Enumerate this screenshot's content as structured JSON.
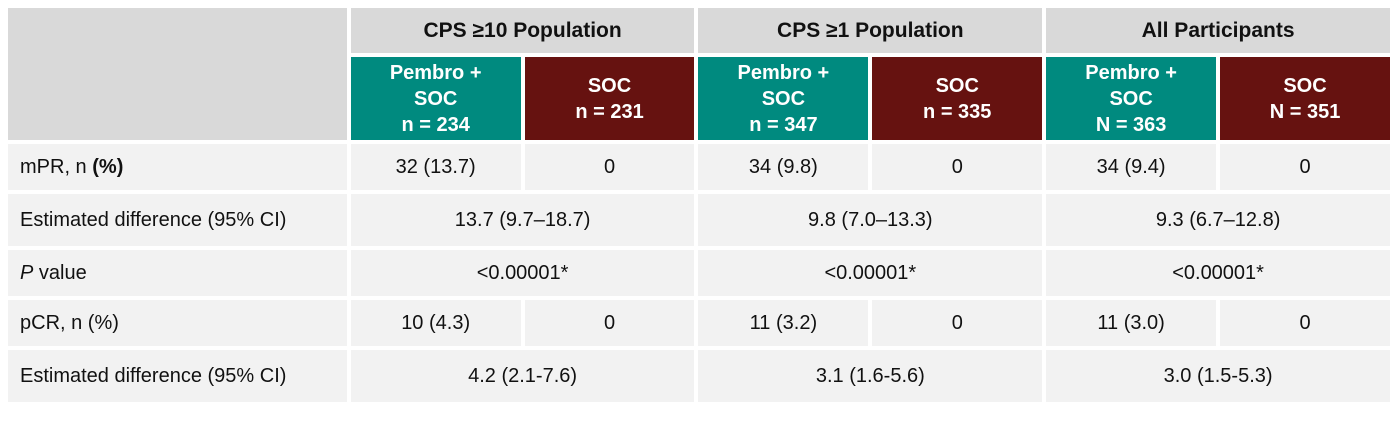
{
  "groups": [
    {
      "title": "CPS ≥10 Population",
      "pembro": {
        "lines": [
          "Pembro +",
          "SOC",
          "n = 234"
        ]
      },
      "soc": {
        "lines": [
          "SOC",
          "n = 231"
        ]
      }
    },
    {
      "title": "CPS ≥1 Population",
      "pembro": {
        "lines": [
          "Pembro +",
          "SOC",
          "n = 347"
        ]
      },
      "soc": {
        "lines": [
          "SOC",
          "n = 335"
        ]
      }
    },
    {
      "title": "All Participants",
      "pembro": {
        "lines": [
          "Pembro +",
          "SOC",
          "N = 363"
        ]
      },
      "soc": {
        "lines": [
          "SOC",
          "N = 351"
        ]
      }
    }
  ],
  "rows": [
    {
      "label_prefix": "mPR, n ",
      "label_bold": "(%)",
      "cells": [
        "32 (13.7)",
        "0",
        "34 (9.8)",
        "0",
        "34 (9.4)",
        "0"
      ]
    },
    {
      "label": "Estimated difference (95% CI)",
      "merged": [
        "13.7 (9.7–18.7)",
        "9.8 (7.0–13.3)",
        "9.3 (6.7–12.8)"
      ]
    },
    {
      "label_italic": "P",
      "label_rest": " value",
      "merged": [
        "<0.00001*",
        "<0.00001*",
        "<0.00001*"
      ]
    },
    {
      "label": "pCR, n (%)",
      "cells": [
        "10 (4.3)",
        "0",
        "11 (3.2)",
        "0",
        "11 (3.0)",
        "0"
      ]
    },
    {
      "label": "Estimated difference (95% CI)",
      "merged": [
        "4.2 (2.1-7.6)",
        "3.1 (1.6-5.6)",
        "3.0 (1.5-5.3)"
      ]
    }
  ],
  "colors": {
    "pembro": "#008a7f",
    "soc": "#661210",
    "header_gray": "#d9d9d9",
    "cell_gray": "#f2f2f2"
  }
}
